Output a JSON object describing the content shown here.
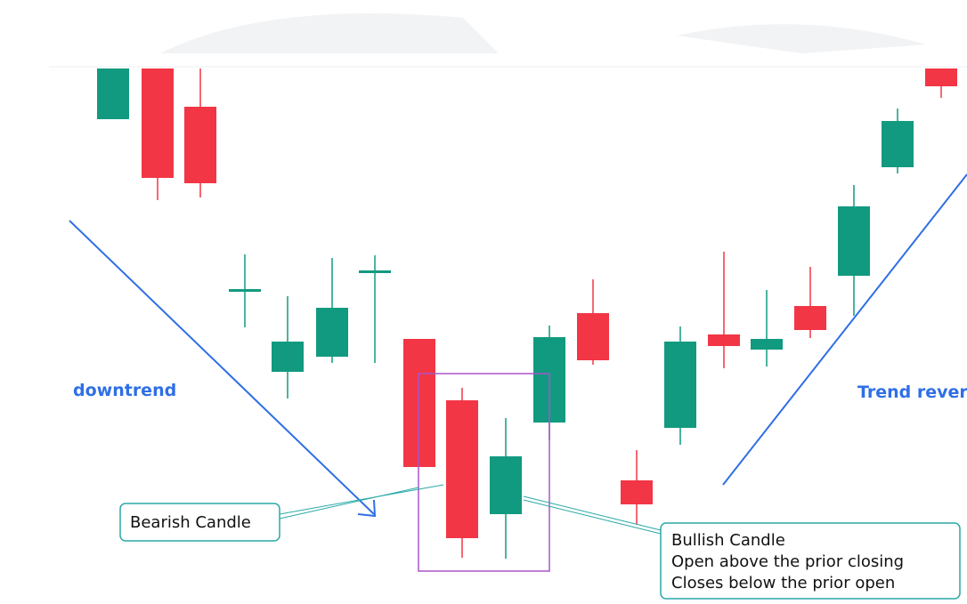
{
  "labels": {
    "downtrend": "downtrend",
    "reversal": "Trend rever"
  },
  "callouts": {
    "bearish": "Bearish Candle",
    "bullish": [
      "Bullish Candle",
      "Open above the prior closing",
      "Closes below the prior open"
    ]
  }
}
